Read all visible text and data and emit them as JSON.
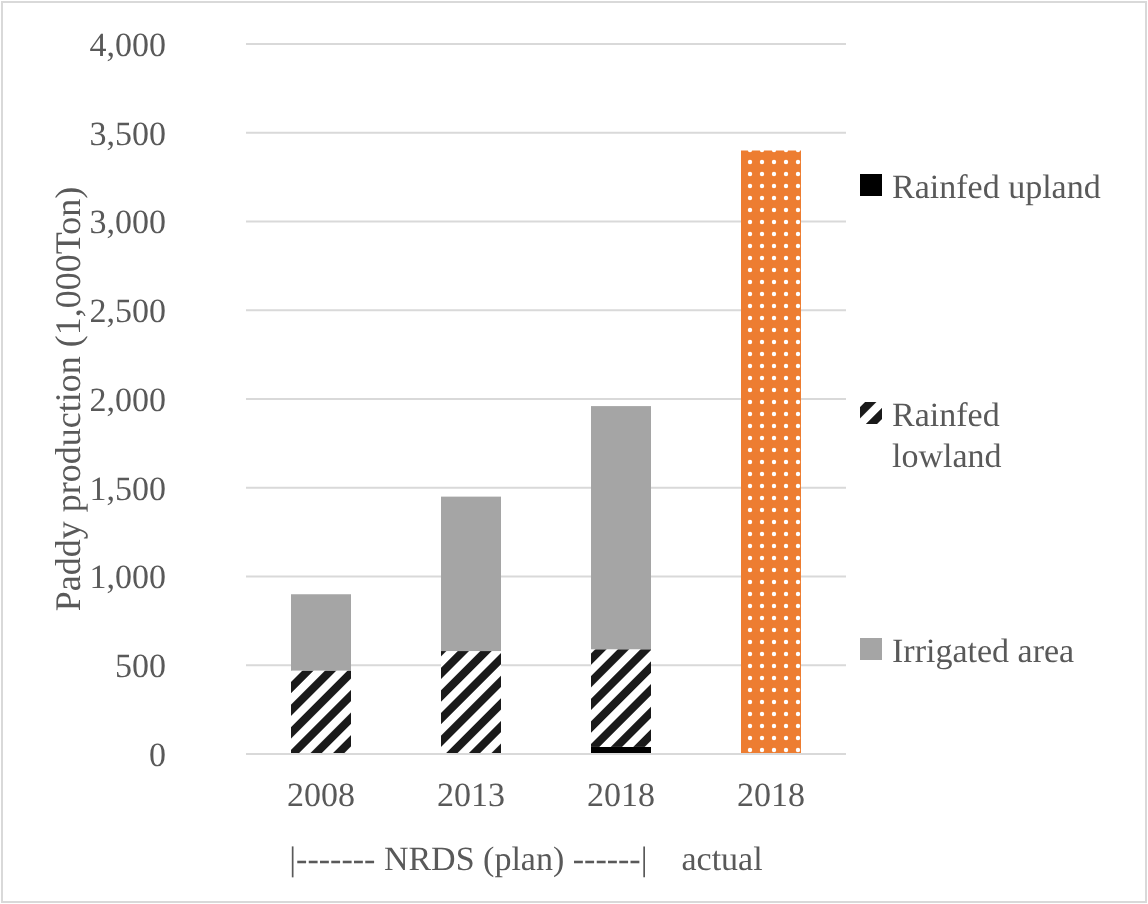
{
  "chart_data": {
    "type": "bar",
    "stacked": true,
    "ylabel": "Paddy production (1,000Ton)",
    "categories": [
      "2008",
      "2013",
      "2018",
      "2018"
    ],
    "series": [
      {
        "name": "Rainfed upland",
        "color": "#000000",
        "values": [
          0,
          0,
          40,
          null
        ]
      },
      {
        "name": "Rainfed lowland",
        "color": "#1a1a1a",
        "values": [
          470,
          580,
          550,
          null
        ]
      },
      {
        "name": "Irrigated area",
        "color": "#a5a5a5",
        "values": [
          430,
          870,
          1370,
          null
        ]
      },
      {
        "color": "#ed7d31",
        "values": [
          null,
          null,
          null,
          3400
        ]
      }
    ],
    "ylim": [
      0,
      4000
    ],
    "yticks": [
      {
        "value": 0,
        "label": "0"
      },
      {
        "value": 500,
        "label": "500"
      },
      {
        "value": 1000,
        "label": "1,000"
      },
      {
        "value": 1500,
        "label": "1,500"
      },
      {
        "value": 2000,
        "label": "2,000"
      },
      {
        "value": 2500,
        "label": "2,500"
      },
      {
        "value": 3000,
        "label": "3,000"
      },
      {
        "value": 3500,
        "label": "3,500"
      },
      {
        "value": 4000,
        "label": "4,000"
      }
    ],
    "grid": "y",
    "legend": "right",
    "annotations": [
      "|------- NRDS (plan) ------|    actual"
    ]
  }
}
